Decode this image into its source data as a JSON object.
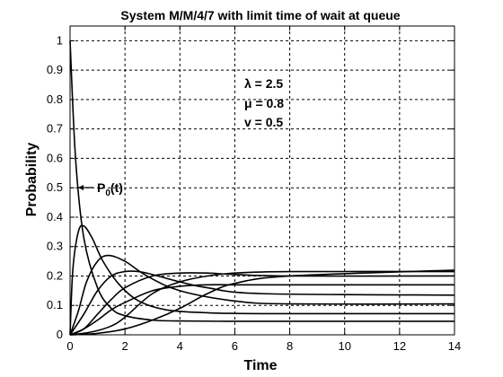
{
  "chart_data": {
    "type": "line",
    "title": "System M/M/4/7 with limit time of wait at queue",
    "xlabel": "Time",
    "ylabel": "Probability",
    "xlim": [
      0,
      14
    ],
    "ylim": [
      0,
      1.05
    ],
    "xticks": [
      "0",
      "2",
      "4",
      "6",
      "8",
      "10",
      "12",
      "14"
    ],
    "yticks": [
      "0",
      "0.1",
      "0.2",
      "0.3",
      "0.4",
      "0.5",
      "0.6",
      "0.7",
      "0.8",
      "0.9",
      "1"
    ],
    "grid": true,
    "parameters": [
      "λ = 2.5",
      "μ = 0.8",
      "v = 0.5"
    ],
    "curve_label": "P",
    "curve_label_sub": "0",
    "curve_label_suffix": "(t)",
    "series": [
      {
        "x": [
          0,
          0.2,
          0.5,
          1,
          1.5,
          2,
          3,
          4,
          6,
          8,
          14
        ],
        "y": [
          1,
          0.6,
          0.33,
          0.16,
          0.09,
          0.065,
          0.05,
          0.047,
          0.046,
          0.046,
          0.046
        ]
      },
      {
        "x": [
          0,
          0.1,
          0.3,
          0.5,
          0.8,
          1.2,
          1.8,
          2.5,
          3.5,
          5,
          7,
          14
        ],
        "y": [
          0,
          0.22,
          0.35,
          0.37,
          0.33,
          0.25,
          0.17,
          0.115,
          0.085,
          0.075,
          0.072,
          0.072
        ]
      },
      {
        "x": [
          0,
          0.3,
          0.6,
          1,
          1.4,
          2,
          2.8,
          4,
          6,
          8,
          14
        ],
        "y": [
          0,
          0.08,
          0.18,
          0.25,
          0.27,
          0.25,
          0.2,
          0.15,
          0.115,
          0.105,
          0.105
        ]
      },
      {
        "x": [
          0,
          0.5,
          1,
          1.5,
          2,
          2.5,
          3,
          4,
          5,
          7,
          14
        ],
        "y": [
          0,
          0.07,
          0.15,
          0.2,
          0.215,
          0.215,
          0.205,
          0.18,
          0.16,
          0.14,
          0.135
        ]
      },
      {
        "x": [
          0,
          0.5,
          1,
          1.5,
          2,
          3,
          4,
          5,
          6,
          8,
          14
        ],
        "y": [
          0,
          0.02,
          0.07,
          0.12,
          0.16,
          0.2,
          0.21,
          0.21,
          0.205,
          0.2,
          0.2
        ]
      },
      {
        "x": [
          0,
          0.5,
          1,
          1.5,
          2,
          3,
          4,
          5,
          6,
          8,
          14
        ],
        "y": [
          0,
          0.02,
          0.05,
          0.085,
          0.11,
          0.15,
          0.165,
          0.17,
          0.17,
          0.17,
          0.17
        ]
      },
      {
        "x": [
          0,
          0.8,
          1.5,
          2,
          3,
          4,
          5,
          6,
          8,
          14
        ],
        "y": [
          0,
          0.01,
          0.03,
          0.06,
          0.14,
          0.18,
          0.2,
          0.21,
          0.215,
          0.215
        ]
      },
      {
        "x": [
          0,
          1,
          2,
          3,
          4,
          5,
          6,
          8,
          14
        ],
        "y": [
          0,
          0.005,
          0.02,
          0.05,
          0.09,
          0.14,
          0.175,
          0.2,
          0.22
        ]
      }
    ]
  }
}
